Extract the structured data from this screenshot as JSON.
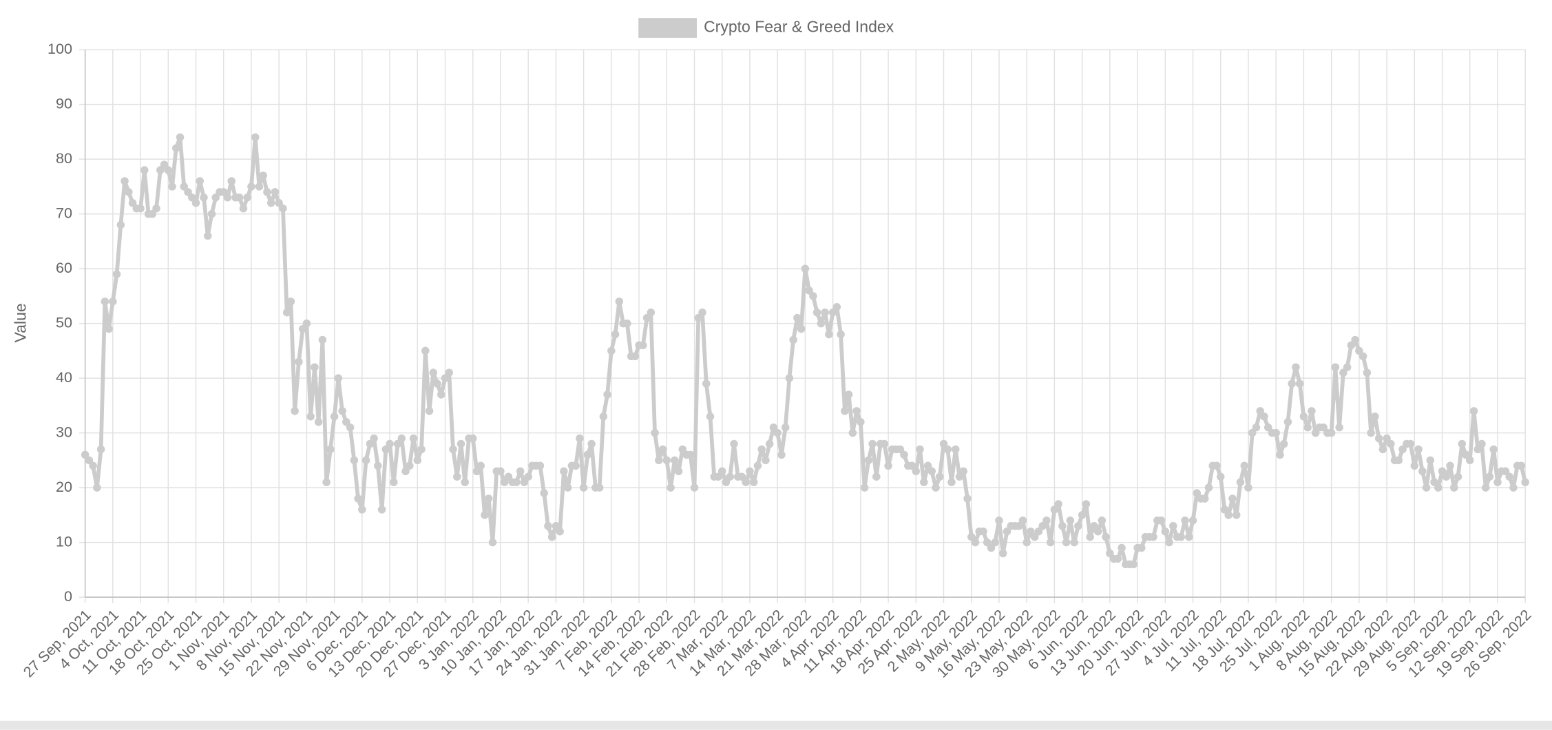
{
  "chart_data": {
    "type": "line",
    "y_label": "Value",
    "ylim": [
      0,
      100
    ],
    "yticks": [
      0,
      10,
      20,
      30,
      40,
      50,
      60,
      70,
      80,
      90,
      100
    ],
    "grid": true,
    "legend": "top",
    "categories": [
      "27 Sep, 2021",
      null,
      null,
      null,
      null,
      null,
      null,
      "4 Oct, 2021",
      null,
      null,
      null,
      null,
      null,
      null,
      "11 Oct, 2021",
      null,
      null,
      null,
      null,
      null,
      null,
      "18 Oct, 2021",
      null,
      null,
      null,
      null,
      null,
      null,
      "25 Oct, 2021",
      null,
      null,
      null,
      null,
      null,
      null,
      "1 Nov, 2021",
      null,
      null,
      null,
      null,
      null,
      null,
      "8 Nov, 2021",
      null,
      null,
      null,
      null,
      null,
      null,
      "15 Nov, 2021",
      null,
      null,
      null,
      null,
      null,
      null,
      "22 Nov, 2021",
      null,
      null,
      null,
      null,
      null,
      null,
      "29 Nov, 2021",
      null,
      null,
      null,
      null,
      null,
      null,
      "6 Dec, 2021",
      null,
      null,
      null,
      null,
      null,
      null,
      "13 Dec, 2021",
      null,
      null,
      null,
      null,
      null,
      null,
      "20 Dec, 2021",
      null,
      null,
      null,
      null,
      null,
      null,
      "27 Dec, 2021",
      null,
      null,
      null,
      null,
      null,
      null,
      "3 Jan, 2022",
      null,
      null,
      null,
      null,
      null,
      null,
      "10 Jan, 2022",
      null,
      null,
      null,
      null,
      null,
      null,
      "17 Jan, 2022",
      null,
      null,
      null,
      null,
      null,
      null,
      "24 Jan, 2022",
      null,
      null,
      null,
      null,
      null,
      null,
      "31 Jan, 2022",
      null,
      null,
      null,
      null,
      null,
      null,
      "7 Feb, 2022",
      null,
      null,
      null,
      null,
      null,
      null,
      "14 Feb, 2022",
      null,
      null,
      null,
      null,
      null,
      null,
      "21 Feb, 2022",
      null,
      null,
      null,
      null,
      null,
      null,
      "28 Feb, 2022",
      null,
      null,
      null,
      null,
      null,
      null,
      "7 Mar, 2022",
      null,
      null,
      null,
      null,
      null,
      null,
      "14 Mar, 2022",
      null,
      null,
      null,
      null,
      null,
      null,
      "21 Mar, 2022",
      null,
      null,
      null,
      null,
      null,
      null,
      "28 Mar, 2022",
      null,
      null,
      null,
      null,
      null,
      null,
      "4 Apr, 2022",
      null,
      null,
      null,
      null,
      null,
      null,
      "11 Apr, 2022",
      null,
      null,
      null,
      null,
      null,
      null,
      "18 Apr, 2022",
      null,
      null,
      null,
      null,
      null,
      null,
      "25 Apr, 2022",
      null,
      null,
      null,
      null,
      null,
      null,
      "2 May, 2022",
      null,
      null,
      null,
      null,
      null,
      null,
      "9 May, 2022",
      null,
      null,
      null,
      null,
      null,
      null,
      "16 May, 2022",
      null,
      null,
      null,
      null,
      null,
      null,
      "23 May, 2022",
      null,
      null,
      null,
      null,
      null,
      null,
      "30 May, 2022",
      null,
      null,
      null,
      null,
      null,
      null,
      "6 Jun, 2022",
      null,
      null,
      null,
      null,
      null,
      null,
      "13 Jun, 2022",
      null,
      null,
      null,
      null,
      null,
      null,
      "20 Jun, 2022",
      null,
      null,
      null,
      null,
      null,
      null,
      "27 Jun, 2022",
      null,
      null,
      null,
      null,
      null,
      null,
      "4 Jul, 2022",
      null,
      null,
      null,
      null,
      null,
      null,
      "11 Jul, 2022",
      null,
      null,
      null,
      null,
      null,
      null,
      "18 Jul, 2022",
      null,
      null,
      null,
      null,
      null,
      null,
      "25 Jul, 2022",
      null,
      null,
      null,
      null,
      null,
      null,
      "1 Aug, 2022",
      null,
      null,
      null,
      null,
      null,
      null,
      "8 Aug, 2022",
      null,
      null,
      null,
      null,
      null,
      null,
      "15 Aug, 2022",
      null,
      null,
      null,
      null,
      null,
      null,
      "22 Aug, 2022",
      null,
      null,
      null,
      null,
      null,
      null,
      "29 Aug, 2022",
      null,
      null,
      null,
      null,
      null,
      null,
      "5 Sep, 2022",
      null,
      null,
      null,
      null,
      null,
      null,
      "12 Sep, 2022",
      null,
      null,
      null,
      null,
      null,
      null,
      "19 Sep, 2022",
      null,
      null,
      null,
      null,
      null,
      null,
      "26 Sep, 2022"
    ],
    "series": [
      {
        "name": "Crypto Fear & Greed Index",
        "color": "#cccccc",
        "values": [
          26,
          25,
          24,
          20,
          27,
          54,
          49,
          54,
          59,
          68,
          76,
          74,
          72,
          71,
          71,
          78,
          70,
          70,
          71,
          78,
          79,
          78,
          75,
          82,
          84,
          75,
          74,
          73,
          72,
          76,
          73,
          66,
          70,
          73,
          74,
          74,
          73,
          76,
          73,
          73,
          71,
          73,
          75,
          84,
          75,
          77,
          74,
          72,
          74,
          72,
          71,
          52,
          54,
          34,
          43,
          49,
          50,
          33,
          42,
          32,
          47,
          21,
          27,
          33,
          40,
          34,
          32,
          31,
          25,
          18,
          16,
          25,
          28,
          29,
          24,
          16,
          27,
          28,
          21,
          28,
          29,
          23,
          24,
          29,
          25,
          27,
          45,
          34,
          41,
          39,
          37,
          40,
          41,
          27,
          22,
          28,
          21,
          29,
          29,
          23,
          24,
          15,
          18,
          10,
          23,
          23,
          21,
          22,
          21,
          21,
          23,
          21,
          22,
          24,
          24,
          24,
          19,
          13,
          11,
          13,
          12,
          23,
          20,
          24,
          24,
          29,
          20,
          26,
          28,
          20,
          20,
          33,
          37,
          45,
          48,
          54,
          50,
          50,
          44,
          44,
          46,
          46,
          51,
          52,
          30,
          25,
          27,
          25,
          20,
          25,
          23,
          27,
          26,
          26,
          20,
          51,
          52,
          39,
          33,
          22,
          22,
          23,
          21,
          22,
          28,
          22,
          22,
          21,
          23,
          21,
          24,
          27,
          25,
          28,
          31,
          30,
          26,
          31,
          40,
          47,
          51,
          49,
          60,
          56,
          55,
          52,
          50,
          52,
          48,
          52,
          53,
          48,
          34,
          37,
          30,
          34,
          32,
          20,
          25,
          28,
          22,
          28,
          28,
          24,
          27,
          27,
          27,
          26,
          24,
          24,
          23,
          27,
          21,
          24,
          23,
          20,
          22,
          28,
          27,
          21,
          27,
          22,
          23,
          18,
          11,
          10,
          12,
          12,
          10,
          9,
          10,
          14,
          8,
          12,
          13,
          13,
          13,
          14,
          10,
          12,
          11,
          12,
          13,
          14,
          10,
          16,
          17,
          13,
          10,
          14,
          10,
          13,
          15,
          17,
          11,
          13,
          12,
          14,
          11,
          8,
          7,
          7,
          9,
          6,
          6,
          6,
          9,
          9,
          11,
          11,
          11,
          14,
          14,
          12,
          10,
          13,
          11,
          11,
          14,
          11,
          14,
          19,
          18,
          18,
          20,
          24,
          24,
          22,
          16,
          15,
          18,
          15,
          21,
          24,
          20,
          30,
          31,
          34,
          33,
          31,
          30,
          30,
          26,
          28,
          32,
          39,
          42,
          39,
          33,
          31,
          34,
          30,
          31,
          31,
          30,
          30,
          42,
          31,
          41,
          42,
          46,
          47,
          45,
          44,
          41,
          30,
          33,
          29,
          27,
          29,
          28,
          25,
          25,
          27,
          28,
          28,
          24,
          27,
          23,
          20,
          25,
          21,
          20,
          23,
          22,
          24,
          20,
          22,
          28,
          26,
          25,
          34,
          27,
          28,
          20,
          22,
          27,
          21,
          23,
          23,
          22,
          20,
          24,
          24,
          21
        ]
      }
    ]
  }
}
